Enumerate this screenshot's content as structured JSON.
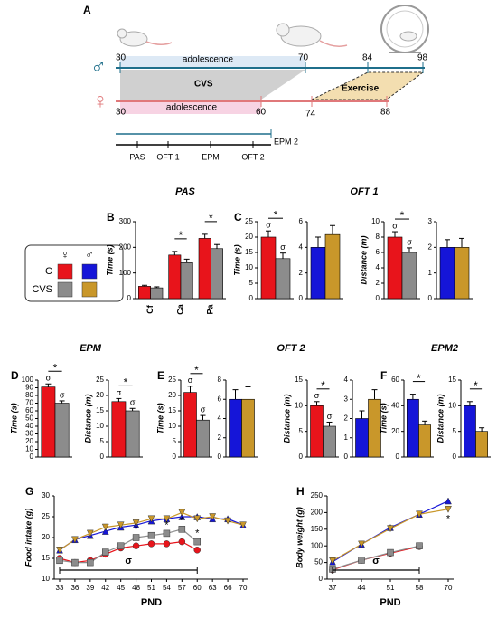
{
  "timeline": {
    "letter": "A",
    "male_symbol": "♂",
    "female_symbol": "♀",
    "male": {
      "start": "30",
      "adolescence": "adolescence",
      "end_adolescence": "70",
      "exercise_start": "84",
      "end": "98"
    },
    "cvs": "CVS",
    "exercise": "Exercise",
    "female": {
      "start": "30",
      "adolescence": "adolescence",
      "end_adolescence": "60",
      "exercise_start": "74",
      "exercise_end": "88"
    },
    "tests": [
      "PAS",
      "OFT 1",
      "EPM",
      "OFT 2"
    ],
    "epm2": "EPM 2"
  },
  "legend": {
    "female": "♀",
    "male": "♂",
    "rows": [
      {
        "name": "C",
        "colors": [
          "#e8141b",
          "#1515d8"
        ]
      },
      {
        "name": "CVS",
        "colors": [
          "#8c8c8c",
          "#c9972a"
        ]
      }
    ]
  },
  "sections": [
    "PAS",
    "OFT 1",
    "EPM",
    "OFT 2",
    "EPM2"
  ],
  "chart_data": [
    {
      "type": "bar",
      "letter": "B",
      "ylabel": "Time (s)",
      "categories": [
        "Cf",
        "Ca",
        "Pa"
      ],
      "ylim": [
        0,
        300
      ],
      "yticks": [
        0,
        100,
        200,
        300
      ],
      "series": [
        {
          "color": "#e8141b",
          "values": [
            48,
            170,
            235
          ],
          "errors": [
            4,
            14,
            16
          ]
        },
        {
          "color": "#8c8c8c",
          "values": [
            42,
            140,
            195
          ],
          "errors": [
            4,
            14,
            16
          ]
        }
      ],
      "stars": [
        null,
        "*",
        "*"
      ]
    },
    {
      "type": "bar",
      "letter": "C",
      "ylabel": "Time (s)",
      "ylim": [
        0,
        25
      ],
      "yticks": [
        0,
        5,
        10,
        15,
        20,
        25
      ],
      "series": [
        {
          "color": "#e8141b",
          "values": [
            20
          ],
          "errors": [
            2
          ],
          "sigma": [
            "σ"
          ]
        },
        {
          "color": "#8c8c8c",
          "values": [
            13
          ],
          "errors": [
            1.8
          ],
          "sigma": [
            "σ"
          ]
        }
      ],
      "stars": [
        "*"
      ]
    },
    {
      "type": "bar",
      "ylim": [
        0,
        6
      ],
      "yticks": [
        0,
        2,
        4,
        6
      ],
      "series": [
        {
          "color": "#1515d8",
          "values": [
            4
          ],
          "errors": [
            0.8
          ]
        },
        {
          "color": "#c9972a",
          "values": [
            5
          ],
          "errors": [
            0.7
          ]
        }
      ]
    },
    {
      "type": "bar",
      "ylabel": "Distance (m)",
      "ylim": [
        0,
        10
      ],
      "yticks": [
        0,
        2,
        4,
        6,
        8,
        10
      ],
      "series": [
        {
          "color": "#e8141b",
          "values": [
            8
          ],
          "errors": [
            0.7
          ],
          "sigma": [
            "σ"
          ]
        },
        {
          "color": "#8c8c8c",
          "values": [
            6
          ],
          "errors": [
            0.6
          ],
          "sigma": [
            "σ"
          ]
        }
      ],
      "stars": [
        "*"
      ]
    },
    {
      "type": "bar",
      "ylim": [
        0,
        3
      ],
      "yticks": [
        0,
        1,
        2,
        3
      ],
      "series": [
        {
          "color": "#1515d8",
          "values": [
            2
          ],
          "errors": [
            0.3
          ]
        },
        {
          "color": "#c9972a",
          "values": [
            2
          ],
          "errors": [
            0.35
          ]
        }
      ]
    },
    {
      "type": "bar",
      "letter": "D",
      "ylabel": "Time (s)",
      "ylim": [
        0,
        100
      ],
      "yticks": [
        0,
        10,
        20,
        30,
        40,
        50,
        60,
        70,
        80,
        90,
        100
      ],
      "series": [
        {
          "color": "#e8141b",
          "values": [
            91
          ],
          "errors": [
            4
          ],
          "sigma": [
            "σ"
          ]
        },
        {
          "color": "#8c8c8c",
          "values": [
            70
          ],
          "errors": [
            3
          ],
          "sigma": [
            "σ"
          ]
        }
      ],
      "stars": [
        "*"
      ]
    },
    {
      "type": "bar",
      "ylabel": "Distance (m)",
      "ylim": [
        0,
        25
      ],
      "yticks": [
        0,
        5,
        10,
        15,
        20,
        25
      ],
      "series": [
        {
          "color": "#e8141b",
          "values": [
            18
          ],
          "errors": [
            1
          ],
          "sigma": [
            "σ"
          ]
        },
        {
          "color": "#8c8c8c",
          "values": [
            15
          ],
          "errors": [
            0.8
          ],
          "sigma": [
            "σ"
          ]
        }
      ],
      "stars": [
        "*"
      ]
    },
    {
      "type": "bar",
      "letter": "E",
      "ylabel": "Time (s)",
      "ylim": [
        0,
        25
      ],
      "yticks": [
        0,
        5,
        10,
        15,
        20,
        25
      ],
      "series": [
        {
          "color": "#e8141b",
          "values": [
            21
          ],
          "errors": [
            2
          ],
          "sigma": [
            "σ"
          ]
        },
        {
          "color": "#8c8c8c",
          "values": [
            12
          ],
          "errors": [
            1.5
          ],
          "sigma": [
            "σ"
          ]
        }
      ],
      "stars": [
        "*"
      ]
    },
    {
      "type": "bar",
      "ylim": [
        0,
        8
      ],
      "yticks": [
        0,
        2,
        4,
        6,
        8
      ],
      "series": [
        {
          "color": "#1515d8",
          "values": [
            6
          ],
          "errors": [
            1
          ]
        },
        {
          "color": "#c9972a",
          "values": [
            6
          ],
          "errors": [
            1.3
          ]
        }
      ]
    },
    {
      "type": "bar",
      "ylabel": "Distance (m)",
      "ylim": [
        0,
        15
      ],
      "yticks": [
        0,
        5,
        10,
        15
      ],
      "series": [
        {
          "color": "#e8141b",
          "values": [
            10
          ],
          "errors": [
            0.8
          ],
          "sigma": [
            "σ"
          ]
        },
        {
          "color": "#8c8c8c",
          "values": [
            6
          ],
          "errors": [
            0.8
          ],
          "sigma": [
            "σ"
          ]
        }
      ],
      "stars": [
        "*"
      ]
    },
    {
      "type": "bar",
      "ylim": [
        0,
        4
      ],
      "yticks": [
        0,
        1,
        2,
        3,
        4
      ],
      "series": [
        {
          "color": "#1515d8",
          "values": [
            2
          ],
          "errors": [
            0.4
          ]
        },
        {
          "color": "#c9972a",
          "values": [
            3
          ],
          "errors": [
            0.5
          ]
        }
      ]
    },
    {
      "type": "bar",
      "letter": "F",
      "ylabel": "Time (s)",
      "ylim": [
        0,
        60
      ],
      "yticks": [
        0,
        20,
        40,
        60
      ],
      "series": [
        {
          "color": "#1515d8",
          "values": [
            45
          ],
          "errors": [
            4
          ]
        },
        {
          "color": "#c9972a",
          "values": [
            25
          ],
          "errors": [
            3
          ]
        }
      ],
      "stars": [
        "*"
      ]
    },
    {
      "type": "bar",
      "ylabel": "Distance (m)",
      "ylim": [
        0,
        15
      ],
      "yticks": [
        0,
        5,
        10,
        15
      ],
      "series": [
        {
          "color": "#1515d8",
          "values": [
            10
          ],
          "errors": [
            0.8
          ]
        },
        {
          "color": "#c9972a",
          "values": [
            5
          ],
          "errors": [
            0.7
          ]
        }
      ],
      "stars": [
        "*"
      ]
    },
    {
      "type": "line",
      "letter": "G",
      "ylabel": "Food intake (g)",
      "xlabel": "PND",
      "categories": [
        33,
        36,
        39,
        42,
        45,
        48,
        51,
        54,
        57,
        60,
        63,
        66,
        70
      ],
      "ylim": [
        10,
        30
      ],
      "yticks": [
        10,
        15,
        20,
        25,
        30
      ],
      "series": [
        {
          "color": "#1515d8",
          "marker": "triangle",
          "values": [
            17,
            19.5,
            20.5,
            21.5,
            22.5,
            23,
            24,
            24.5,
            25,
            25,
            24.5,
            24.5,
            23
          ]
        },
        {
          "color": "#c9972a",
          "marker": "triangle-down",
          "values": [
            17,
            19.5,
            21,
            22.5,
            23,
            23.5,
            24.5,
            24.5,
            26,
            24.5,
            25,
            24,
            23
          ]
        },
        {
          "color": "#e8141b",
          "marker": "circle",
          "values": [
            15,
            14,
            14.5,
            16,
            17.5,
            18,
            18.5,
            18.5,
            19,
            17,
            null,
            null,
            null
          ]
        },
        {
          "color": "#8c8c8c",
          "marker": "square",
          "values": [
            14.5,
            14,
            14,
            16.5,
            18,
            20,
            20.5,
            21,
            22,
            19,
            null,
            null,
            null
          ]
        }
      ],
      "stars": [
        null,
        null,
        null,
        null,
        null,
        "*",
        null,
        "*",
        "*",
        "*",
        null,
        null,
        null
      ],
      "sigma": "σ"
    },
    {
      "type": "line",
      "letter": "H",
      "ylabel": "Body weight (g)",
      "xlabel": "PND",
      "categories": [
        37,
        44,
        51,
        58,
        70
      ],
      "ylim": [
        0,
        250
      ],
      "yticks": [
        0,
        50,
        100,
        150,
        200,
        250
      ],
      "series": [
        {
          "color": "#1515d8",
          "marker": "triangle",
          "values": [
            52,
            105,
            155,
            195,
            235
          ]
        },
        {
          "color": "#c9972a",
          "marker": "triangle-down",
          "values": [
            55,
            105,
            152,
            195,
            210
          ]
        },
        {
          "color": "#e8141b",
          "marker": "circle",
          "values": [
            28,
            57,
            78,
            98,
            null
          ]
        },
        {
          "color": "#8c8c8c",
          "marker": "square",
          "values": [
            30,
            57,
            80,
            100,
            null
          ]
        }
      ],
      "stars": [
        null,
        null,
        null,
        null,
        "*"
      ],
      "sigma": "σ"
    }
  ]
}
